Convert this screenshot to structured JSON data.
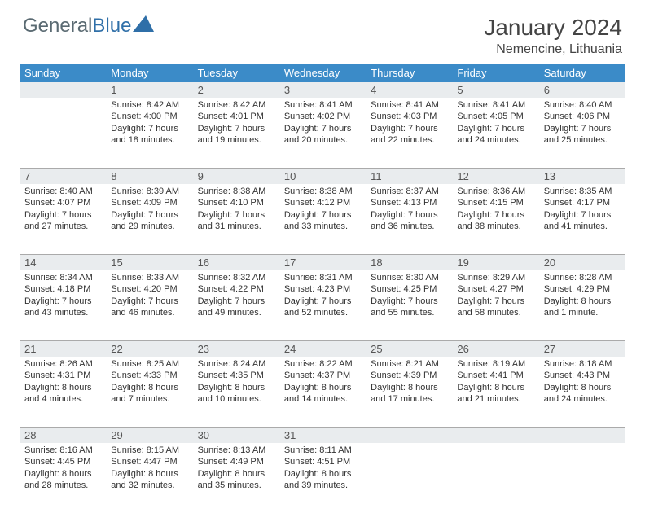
{
  "brand": {
    "part1": "General",
    "part2": "Blue"
  },
  "title": "January 2024",
  "location": "Nemencine, Lithuania",
  "colors": {
    "header_bg": "#3b8bc8",
    "daynum_bg": "#e9ecee",
    "border": "#aaaaaa",
    "text": "#333333",
    "brand_gray": "#5a6a72",
    "brand_blue": "#2f6fa8"
  },
  "weekdays": [
    "Sunday",
    "Monday",
    "Tuesday",
    "Wednesday",
    "Thursday",
    "Friday",
    "Saturday"
  ],
  "weeks": [
    {
      "nums": [
        "",
        "1",
        "2",
        "3",
        "4",
        "5",
        "6"
      ],
      "cells": [
        {
          "sunrise": "",
          "sunset": "",
          "day1": "",
          "day2": ""
        },
        {
          "sunrise": "Sunrise: 8:42 AM",
          "sunset": "Sunset: 4:00 PM",
          "day1": "Daylight: 7 hours",
          "day2": "and 18 minutes."
        },
        {
          "sunrise": "Sunrise: 8:42 AM",
          "sunset": "Sunset: 4:01 PM",
          "day1": "Daylight: 7 hours",
          "day2": "and 19 minutes."
        },
        {
          "sunrise": "Sunrise: 8:41 AM",
          "sunset": "Sunset: 4:02 PM",
          "day1": "Daylight: 7 hours",
          "day2": "and 20 minutes."
        },
        {
          "sunrise": "Sunrise: 8:41 AM",
          "sunset": "Sunset: 4:03 PM",
          "day1": "Daylight: 7 hours",
          "day2": "and 22 minutes."
        },
        {
          "sunrise": "Sunrise: 8:41 AM",
          "sunset": "Sunset: 4:05 PM",
          "day1": "Daylight: 7 hours",
          "day2": "and 24 minutes."
        },
        {
          "sunrise": "Sunrise: 8:40 AM",
          "sunset": "Sunset: 4:06 PM",
          "day1": "Daylight: 7 hours",
          "day2": "and 25 minutes."
        }
      ]
    },
    {
      "nums": [
        "7",
        "8",
        "9",
        "10",
        "11",
        "12",
        "13"
      ],
      "cells": [
        {
          "sunrise": "Sunrise: 8:40 AM",
          "sunset": "Sunset: 4:07 PM",
          "day1": "Daylight: 7 hours",
          "day2": "and 27 minutes."
        },
        {
          "sunrise": "Sunrise: 8:39 AM",
          "sunset": "Sunset: 4:09 PM",
          "day1": "Daylight: 7 hours",
          "day2": "and 29 minutes."
        },
        {
          "sunrise": "Sunrise: 8:38 AM",
          "sunset": "Sunset: 4:10 PM",
          "day1": "Daylight: 7 hours",
          "day2": "and 31 minutes."
        },
        {
          "sunrise": "Sunrise: 8:38 AM",
          "sunset": "Sunset: 4:12 PM",
          "day1": "Daylight: 7 hours",
          "day2": "and 33 minutes."
        },
        {
          "sunrise": "Sunrise: 8:37 AM",
          "sunset": "Sunset: 4:13 PM",
          "day1": "Daylight: 7 hours",
          "day2": "and 36 minutes."
        },
        {
          "sunrise": "Sunrise: 8:36 AM",
          "sunset": "Sunset: 4:15 PM",
          "day1": "Daylight: 7 hours",
          "day2": "and 38 minutes."
        },
        {
          "sunrise": "Sunrise: 8:35 AM",
          "sunset": "Sunset: 4:17 PM",
          "day1": "Daylight: 7 hours",
          "day2": "and 41 minutes."
        }
      ]
    },
    {
      "nums": [
        "14",
        "15",
        "16",
        "17",
        "18",
        "19",
        "20"
      ],
      "cells": [
        {
          "sunrise": "Sunrise: 8:34 AM",
          "sunset": "Sunset: 4:18 PM",
          "day1": "Daylight: 7 hours",
          "day2": "and 43 minutes."
        },
        {
          "sunrise": "Sunrise: 8:33 AM",
          "sunset": "Sunset: 4:20 PM",
          "day1": "Daylight: 7 hours",
          "day2": "and 46 minutes."
        },
        {
          "sunrise": "Sunrise: 8:32 AM",
          "sunset": "Sunset: 4:22 PM",
          "day1": "Daylight: 7 hours",
          "day2": "and 49 minutes."
        },
        {
          "sunrise": "Sunrise: 8:31 AM",
          "sunset": "Sunset: 4:23 PM",
          "day1": "Daylight: 7 hours",
          "day2": "and 52 minutes."
        },
        {
          "sunrise": "Sunrise: 8:30 AM",
          "sunset": "Sunset: 4:25 PM",
          "day1": "Daylight: 7 hours",
          "day2": "and 55 minutes."
        },
        {
          "sunrise": "Sunrise: 8:29 AM",
          "sunset": "Sunset: 4:27 PM",
          "day1": "Daylight: 7 hours",
          "day2": "and 58 minutes."
        },
        {
          "sunrise": "Sunrise: 8:28 AM",
          "sunset": "Sunset: 4:29 PM",
          "day1": "Daylight: 8 hours",
          "day2": "and 1 minute."
        }
      ]
    },
    {
      "nums": [
        "21",
        "22",
        "23",
        "24",
        "25",
        "26",
        "27"
      ],
      "cells": [
        {
          "sunrise": "Sunrise: 8:26 AM",
          "sunset": "Sunset: 4:31 PM",
          "day1": "Daylight: 8 hours",
          "day2": "and 4 minutes."
        },
        {
          "sunrise": "Sunrise: 8:25 AM",
          "sunset": "Sunset: 4:33 PM",
          "day1": "Daylight: 8 hours",
          "day2": "and 7 minutes."
        },
        {
          "sunrise": "Sunrise: 8:24 AM",
          "sunset": "Sunset: 4:35 PM",
          "day1": "Daylight: 8 hours",
          "day2": "and 10 minutes."
        },
        {
          "sunrise": "Sunrise: 8:22 AM",
          "sunset": "Sunset: 4:37 PM",
          "day1": "Daylight: 8 hours",
          "day2": "and 14 minutes."
        },
        {
          "sunrise": "Sunrise: 8:21 AM",
          "sunset": "Sunset: 4:39 PM",
          "day1": "Daylight: 8 hours",
          "day2": "and 17 minutes."
        },
        {
          "sunrise": "Sunrise: 8:19 AM",
          "sunset": "Sunset: 4:41 PM",
          "day1": "Daylight: 8 hours",
          "day2": "and 21 minutes."
        },
        {
          "sunrise": "Sunrise: 8:18 AM",
          "sunset": "Sunset: 4:43 PM",
          "day1": "Daylight: 8 hours",
          "day2": "and 24 minutes."
        }
      ]
    },
    {
      "nums": [
        "28",
        "29",
        "30",
        "31",
        "",
        "",
        ""
      ],
      "cells": [
        {
          "sunrise": "Sunrise: 8:16 AM",
          "sunset": "Sunset: 4:45 PM",
          "day1": "Daylight: 8 hours",
          "day2": "and 28 minutes."
        },
        {
          "sunrise": "Sunrise: 8:15 AM",
          "sunset": "Sunset: 4:47 PM",
          "day1": "Daylight: 8 hours",
          "day2": "and 32 minutes."
        },
        {
          "sunrise": "Sunrise: 8:13 AM",
          "sunset": "Sunset: 4:49 PM",
          "day1": "Daylight: 8 hours",
          "day2": "and 35 minutes."
        },
        {
          "sunrise": "Sunrise: 8:11 AM",
          "sunset": "Sunset: 4:51 PM",
          "day1": "Daylight: 8 hours",
          "day2": "and 39 minutes."
        },
        {
          "sunrise": "",
          "sunset": "",
          "day1": "",
          "day2": ""
        },
        {
          "sunrise": "",
          "sunset": "",
          "day1": "",
          "day2": ""
        },
        {
          "sunrise": "",
          "sunset": "",
          "day1": "",
          "day2": ""
        }
      ]
    }
  ]
}
